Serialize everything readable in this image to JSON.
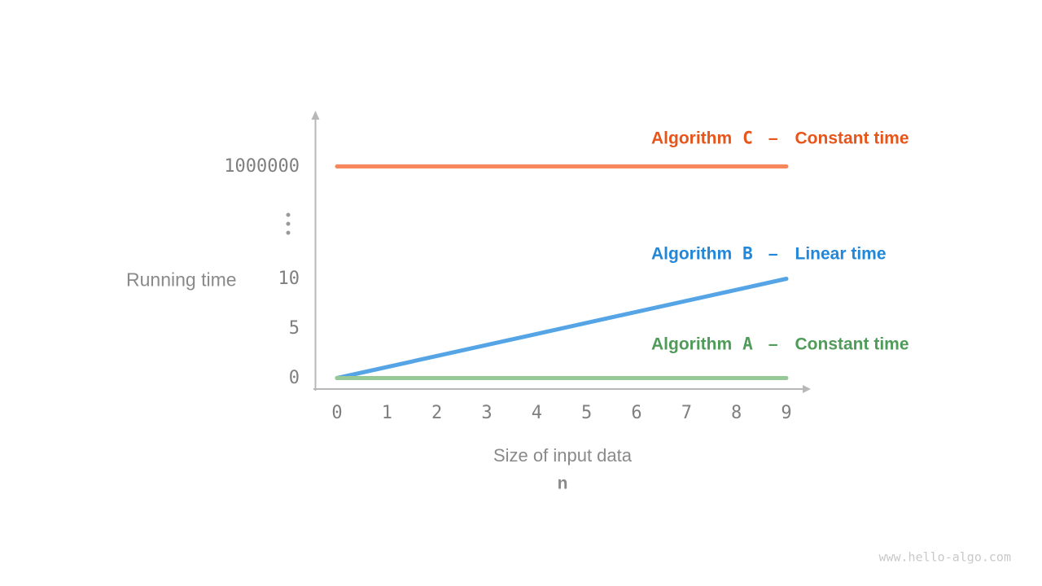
{
  "chart_data": {
    "type": "line",
    "title": "",
    "ylabel": "Running time",
    "xlabel": "Size of input data",
    "xlabel_symbol": "n",
    "x_ticks": [
      "0",
      "1",
      "2",
      "3",
      "4",
      "5",
      "6",
      "7",
      "8",
      "9"
    ],
    "y_ticks": [
      {
        "label": "1000000",
        "value": 1000000
      },
      {
        "label": "10",
        "value": 10
      },
      {
        "label": "5",
        "value": 5
      },
      {
        "label": "0",
        "value": 0
      }
    ],
    "y_axis_break": "⋮",
    "x_range": [
      0,
      9
    ],
    "grid": false,
    "legend_position": "right-inline",
    "series": [
      {
        "name": "Algorithm C",
        "label_word": "Algorithm",
        "letter": "C",
        "dash": "–",
        "desc": "Constant time",
        "x": [
          0,
          9
        ],
        "y": [
          1000000,
          1000000
        ],
        "line_color": "#F8875C",
        "text_color": "#E8551A"
      },
      {
        "name": "Algorithm B",
        "label_word": "Algorithm",
        "letter": "B",
        "dash": "–",
        "desc": "Linear time",
        "x": [
          0,
          9
        ],
        "y": [
          0,
          10
        ],
        "line_color": "#55A5E6",
        "text_color": "#2287D8"
      },
      {
        "name": "Algorithm A",
        "label_word": "Algorithm",
        "letter": "A",
        "dash": "–",
        "desc": "Constant time",
        "x": [
          0,
          9
        ],
        "y": [
          0,
          0
        ],
        "line_color": "#97C997",
        "text_color": "#4F9B59"
      }
    ]
  },
  "footer": {
    "watermark": "www.hello-algo.com"
  }
}
